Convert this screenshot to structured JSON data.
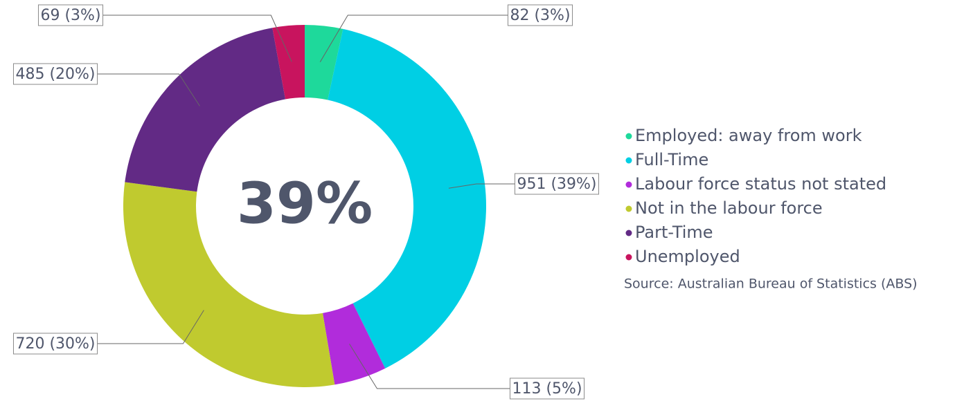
{
  "chart_data": {
    "type": "donut",
    "categories": [
      "Employed: away from work",
      "Full-Time",
      "Labour force status not stated",
      "Not in the labour force",
      "Part-Time",
      "Unemployed"
    ],
    "values": [
      82,
      951,
      113,
      720,
      485,
      69
    ],
    "value_labels": [
      "82 (3%)",
      "951 (39%)",
      "113 (5%)",
      "720 (30%)",
      "485 (20%)",
      "69 (3%)"
    ],
    "colors": [
      "#1ed99b",
      "#00cfe4",
      "#b12cdb",
      "#c0ca2f",
      "#622a85",
      "#c8145e"
    ],
    "center_label": "39%",
    "source": "Source: Australian Bureau of Statistics (ABS)",
    "legend": "right"
  }
}
